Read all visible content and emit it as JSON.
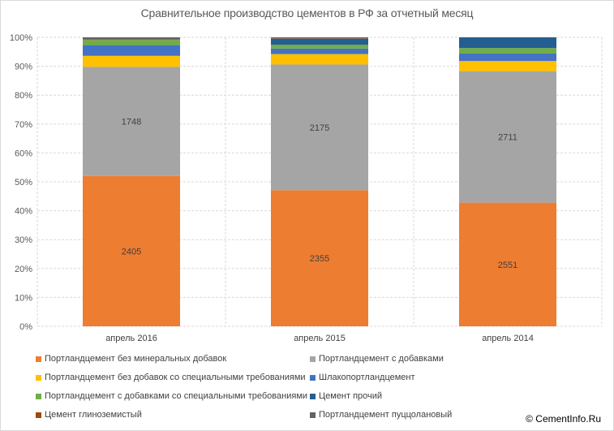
{
  "watermark": "© CementInfo.Ru",
  "chart_data": {
    "type": "bar",
    "stacked": "percent",
    "title": "Сравнительное производство цементов в РФ за отчетный месяц",
    "categories": [
      "апрель 2016",
      "апрель 2015",
      "апрель 2014"
    ],
    "ylim": [
      0,
      100
    ],
    "y_ticks": [
      "0%",
      "10%",
      "20%",
      "30%",
      "40%",
      "50%",
      "60%",
      "70%",
      "80%",
      "90%",
      "100%"
    ],
    "grid": true,
    "legend_position": "bottom",
    "series": [
      {
        "name": "Портландцемент без минеральных добавок",
        "color": "#ED7D31",
        "values": [
          52.0,
          47.1,
          42.8
        ],
        "labels": [
          "2405",
          "2355",
          "2551"
        ]
      },
      {
        "name": "Портландцемент с добавками",
        "color": "#A5A5A5",
        "values": [
          37.8,
          43.5,
          45.5
        ],
        "labels": [
          "1748",
          "2175",
          "2711"
        ]
      },
      {
        "name": "Портландцемент без добавок со специальными требованиями",
        "color": "#FFC000",
        "values": [
          3.8,
          3.6,
          3.5
        ],
        "labels": [
          "",
          "",
          ""
        ]
      },
      {
        "name": "Шлакопортландцемент",
        "color": "#4472C4",
        "values": [
          3.7,
          1.9,
          2.6
        ],
        "labels": [
          "",
          "",
          ""
        ]
      },
      {
        "name": "Портландцемент с добавками со специальными требованиями",
        "color": "#70AD47",
        "values": [
          1.8,
          1.3,
          1.9
        ],
        "labels": [
          "",
          "",
          ""
        ]
      },
      {
        "name": "Цемент прочий",
        "color": "#255E91",
        "values": [
          0.0,
          2.1,
          3.7
        ],
        "labels": [
          "",
          "",
          ""
        ]
      },
      {
        "name": "Цемент глиноземистый",
        "color": "#9E480E",
        "values": [
          0.1,
          0.1,
          0.0
        ],
        "labels": [
          "",
          "",
          ""
        ]
      },
      {
        "name": "Портландцемент пуццолановый",
        "color": "#636363",
        "values": [
          0.8,
          0.4,
          0.0
        ],
        "labels": [
          "",
          "",
          ""
        ]
      }
    ]
  }
}
